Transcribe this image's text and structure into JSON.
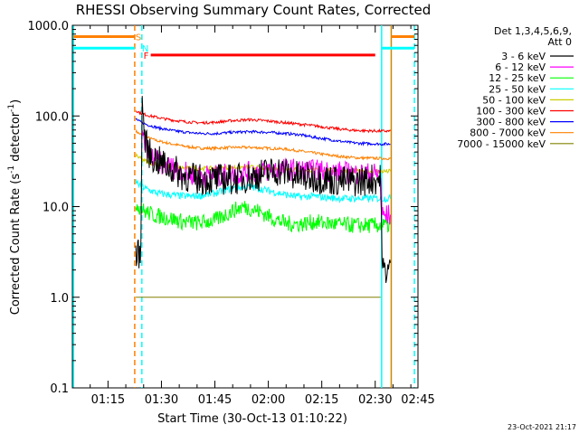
{
  "chart_data": {
    "type": "line",
    "title": "RHESSI Observing Summary Count Rates, Corrected",
    "xlabel": "Start Time (30-Oct-13 01:10:22)",
    "ylabel_main": "Corrected Count Rate (s",
    "ylabel_sup": "-1",
    "ylabel_mid": " detector",
    "ylabel_end": ")",
    "yscale": "log",
    "ylim": [
      0.1,
      1000
    ],
    "xlim_minutes": [
      0,
      97
    ],
    "x_ticks": [
      {
        "t": 10,
        "label": "01:15"
      },
      {
        "t": 25,
        "label": "01:30"
      },
      {
        "t": 40,
        "label": "01:45"
      },
      {
        "t": 55,
        "label": "02:00"
      },
      {
        "t": 70,
        "label": "02:15"
      },
      {
        "t": 85,
        "label": "02:30"
      },
      {
        "t": 100,
        "label": "02:45"
      }
    ],
    "y_ticks": [
      {
        "v": 1000,
        "label": "1000.0"
      },
      {
        "v": 100,
        "label": "100.0"
      },
      {
        "v": 10,
        "label": "10.0"
      },
      {
        "v": 1,
        "label": "1.0"
      },
      {
        "v": 0.1,
        "label": "0.1"
      }
    ],
    "legend_header": [
      "Det 1,3,4,5,6,9,",
      "Att 0"
    ],
    "series": [
      {
        "name": "3 - 6 keV",
        "color": "#000000",
        "base": 20,
        "noise": 0.35,
        "points": [
          [
            17.8,
            3
          ],
          [
            18.8,
            3
          ],
          [
            19.2,
            3.6
          ],
          [
            19.6,
            140
          ],
          [
            20.5,
            50
          ],
          [
            22,
            36
          ],
          [
            25,
            30
          ],
          [
            28,
            26
          ],
          [
            31,
            22
          ],
          [
            35,
            20
          ],
          [
            40,
            20
          ],
          [
            45,
            20
          ],
          [
            50,
            21
          ],
          [
            55,
            24
          ],
          [
            58,
            25
          ],
          [
            61,
            23
          ],
          [
            64,
            21
          ],
          [
            68,
            21
          ],
          [
            72,
            20
          ],
          [
            76,
            19
          ],
          [
            80,
            19
          ],
          [
            84,
            20
          ],
          [
            86.7,
            20
          ],
          [
            86.8,
            2
          ],
          [
            89.4,
            2
          ]
        ]
      },
      {
        "name": "6 - 12 keV",
        "color": "#ff00ff",
        "base": 22,
        "noise": 0.25,
        "points": [
          [
            19.6,
            60
          ],
          [
            20.5,
            45
          ],
          [
            22,
            36
          ],
          [
            25,
            30
          ],
          [
            28,
            27
          ],
          [
            31,
            24
          ],
          [
            35,
            22
          ],
          [
            40,
            22
          ],
          [
            45,
            23
          ],
          [
            50,
            24
          ],
          [
            55,
            25
          ],
          [
            60,
            26
          ],
          [
            65,
            25
          ],
          [
            70,
            25
          ],
          [
            75,
            24
          ],
          [
            80,
            23
          ],
          [
            86.7,
            23
          ],
          [
            86.8,
            8
          ],
          [
            89.4,
            8
          ]
        ]
      },
      {
        "name": "12 - 25 keV",
        "color": "#00ff00",
        "base": 7,
        "noise": 0.18,
        "points": [
          [
            17.8,
            11
          ],
          [
            18.8,
            10
          ],
          [
            20,
            9
          ],
          [
            23,
            8
          ],
          [
            27,
            7.5
          ],
          [
            31,
            6.8
          ],
          [
            35,
            6.6
          ],
          [
            40,
            7
          ],
          [
            45,
            9
          ],
          [
            48,
            10
          ],
          [
            52,
            9
          ],
          [
            56,
            7.5
          ],
          [
            60,
            6.5
          ],
          [
            64,
            6.4
          ],
          [
            68,
            6.8
          ],
          [
            72,
            6.5
          ],
          [
            76,
            6.3
          ],
          [
            80,
            6.2
          ],
          [
            86.7,
            6.2
          ],
          [
            86.8,
            6.2
          ],
          [
            89.4,
            6.2
          ]
        ]
      },
      {
        "name": "25 - 50 keV",
        "color": "#00ffff",
        "base": 14,
        "noise": 0.08,
        "points": [
          [
            17.8,
            19
          ],
          [
            19,
            17
          ],
          [
            21,
            15.5
          ],
          [
            24,
            14
          ],
          [
            28,
            13.4
          ],
          [
            32,
            13
          ],
          [
            36,
            13.2
          ],
          [
            40,
            14
          ],
          [
            45,
            16
          ],
          [
            50,
            16.5
          ],
          [
            55,
            15
          ],
          [
            60,
            13.5
          ],
          [
            64,
            12.8
          ],
          [
            68,
            13
          ],
          [
            72,
            12.5
          ],
          [
            76,
            12.3
          ],
          [
            80,
            12.3
          ],
          [
            86.7,
            12.3
          ],
          [
            86.8,
            12.3
          ],
          [
            89.4,
            12.3
          ]
        ]
      },
      {
        "name": "50 - 100 keV",
        "color": "#cccc00",
        "base": 25,
        "noise": 0.05,
        "points": [
          [
            17.8,
            37
          ],
          [
            19,
            34
          ],
          [
            21,
            31
          ],
          [
            24,
            29
          ],
          [
            28,
            27.5
          ],
          [
            32,
            26.5
          ],
          [
            36,
            26.2
          ],
          [
            40,
            26.5
          ],
          [
            45,
            27
          ],
          [
            50,
            27.2
          ],
          [
            55,
            26.5
          ],
          [
            60,
            26
          ],
          [
            64,
            25.5
          ],
          [
            68,
            25.3
          ],
          [
            72,
            25
          ],
          [
            76,
            24.8
          ],
          [
            80,
            24.5
          ],
          [
            86.7,
            24.5
          ],
          [
            86.8,
            24.5
          ],
          [
            89.4,
            24.5
          ]
        ]
      },
      {
        "name": "100 - 300 keV",
        "color": "#ff0000",
        "base": 80,
        "noise": 0.03,
        "points": [
          [
            17.8,
            115
          ],
          [
            19,
            108
          ],
          [
            21,
            102
          ],
          [
            24,
            96
          ],
          [
            28,
            90
          ],
          [
            32,
            86
          ],
          [
            36,
            84
          ],
          [
            40,
            85
          ],
          [
            45,
            89
          ],
          [
            50,
            91
          ],
          [
            55,
            88
          ],
          [
            60,
            84
          ],
          [
            64,
            81
          ],
          [
            68,
            78
          ],
          [
            72,
            74
          ],
          [
            76,
            71
          ],
          [
            80,
            69
          ],
          [
            86.7,
            68
          ],
          [
            86.8,
            68
          ],
          [
            89.4,
            68
          ]
        ]
      },
      {
        "name": "300 - 800 keV",
        "color": "#0000ff",
        "base": 60,
        "noise": 0.03,
        "points": [
          [
            17.8,
            93
          ],
          [
            19,
            86
          ],
          [
            21,
            80
          ],
          [
            24,
            74
          ],
          [
            28,
            69
          ],
          [
            32,
            66
          ],
          [
            36,
            64
          ],
          [
            40,
            64
          ],
          [
            45,
            66
          ],
          [
            50,
            67
          ],
          [
            55,
            66
          ],
          [
            60,
            64
          ],
          [
            64,
            62
          ],
          [
            68,
            58
          ],
          [
            72,
            55
          ],
          [
            76,
            52
          ],
          [
            80,
            50
          ],
          [
            86.7,
            49
          ],
          [
            86.8,
            49
          ],
          [
            89.4,
            49
          ]
        ]
      },
      {
        "name": "800 - 7000 keV",
        "color": "#ff8000",
        "base": 40,
        "noise": 0.03,
        "points": [
          [
            17.8,
            68
          ],
          [
            19,
            63
          ],
          [
            21,
            58
          ],
          [
            24,
            53
          ],
          [
            28,
            49
          ],
          [
            32,
            46
          ],
          [
            36,
            44
          ],
          [
            40,
            44
          ],
          [
            45,
            45
          ],
          [
            50,
            45
          ],
          [
            55,
            44
          ],
          [
            60,
            43
          ],
          [
            64,
            41
          ],
          [
            68,
            39
          ],
          [
            72,
            37
          ],
          [
            76,
            35.5
          ],
          [
            80,
            34.5
          ],
          [
            86.7,
            34
          ],
          [
            86.8,
            34
          ],
          [
            89.4,
            34
          ]
        ]
      },
      {
        "name": "7000 - 15000 keV",
        "color": "#808000",
        "base": 1,
        "noise": 0.0,
        "points": [
          [
            17.8,
            1
          ],
          [
            86.7,
            1
          ]
        ]
      }
    ],
    "flag_labels": {
      "S": "S",
      "N": "N",
      "F": "F"
    },
    "vertical_markers": [
      {
        "t": 0.3,
        "color": "#00ffff",
        "style": "solid"
      },
      {
        "t": 17.5,
        "color": "#ff8000",
        "style": "dashed"
      },
      {
        "t": 19.5,
        "color": "#00ffff",
        "style": "dashed"
      },
      {
        "t": 86.8,
        "color": "#00ffff",
        "style": "solid"
      },
      {
        "t": 89.5,
        "color": "#cc8800",
        "style": "solid"
      },
      {
        "t": 96.0,
        "color": "#00ffff",
        "style": "dashed"
      }
    ],
    "flag_segments": [
      {
        "label": "S",
        "color": "#ff8000",
        "t0": 0.3,
        "t1": 17.5,
        "t0b": 89.5,
        "t1b": 96.0,
        "level": 750
      },
      {
        "label": "N",
        "color": "#00ffff",
        "t0": 0.3,
        "t1": 17.5,
        "t0b": 86.8,
        "t1b": 96.0,
        "level": 560
      },
      {
        "label": "F",
        "color": "#ff0000",
        "t0": 22.0,
        "t1": 85.0,
        "level": 470
      }
    ],
    "timestamp": "23-Oct-2021 21:17"
  }
}
